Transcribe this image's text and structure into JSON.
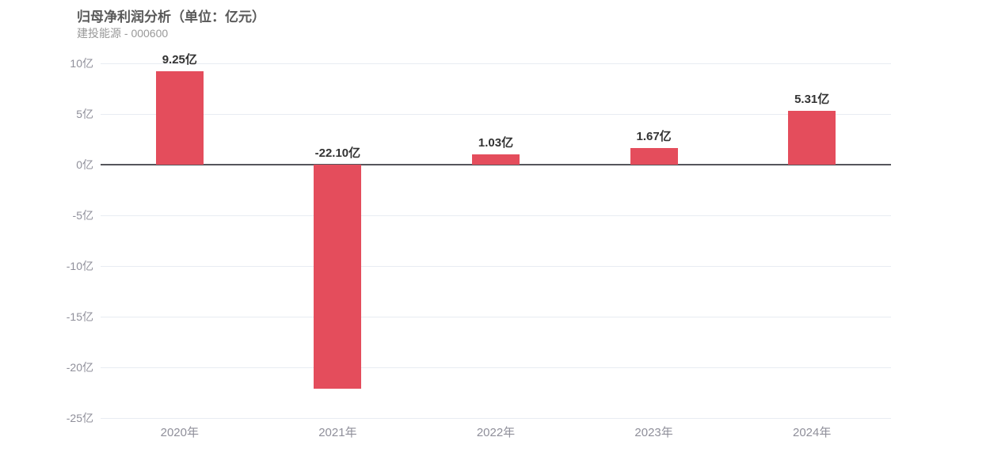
{
  "header": {
    "title": "归母净利润分析（单位：亿元）",
    "subtitle": "建投能源 - 000600"
  },
  "chart_data": {
    "type": "bar",
    "title": "归母净利润分析（单位：亿元）",
    "subtitle": "建投能源 - 000600",
    "categories": [
      "2020年",
      "2021年",
      "2022年",
      "2023年",
      "2024年"
    ],
    "values": [
      9.25,
      -22.1,
      1.03,
      1.67,
      5.31
    ],
    "value_labels": [
      "9.25亿",
      "-22.10亿",
      "1.03亿",
      "1.67亿",
      "5.31亿"
    ],
    "unit": "亿元",
    "ylim": [
      -25,
      10
    ],
    "yticks": [
      10,
      5,
      0,
      -5,
      -10,
      -15,
      -20,
      -25
    ],
    "ytick_labels": [
      "10亿",
      "5亿",
      "0亿",
      "-5亿",
      "-10亿",
      "-15亿",
      "-20亿",
      "-25亿"
    ],
    "grid": true,
    "legend_position": "none",
    "colors": {
      "bar": "#e44d5c",
      "grid_line": "#e8ecf2",
      "zero_line": "#55565c",
      "value_label": "#333333",
      "axis_label": "#8f8f9a",
      "title": "#595959",
      "subtitle": "#999999",
      "background": "#ffffff"
    }
  }
}
